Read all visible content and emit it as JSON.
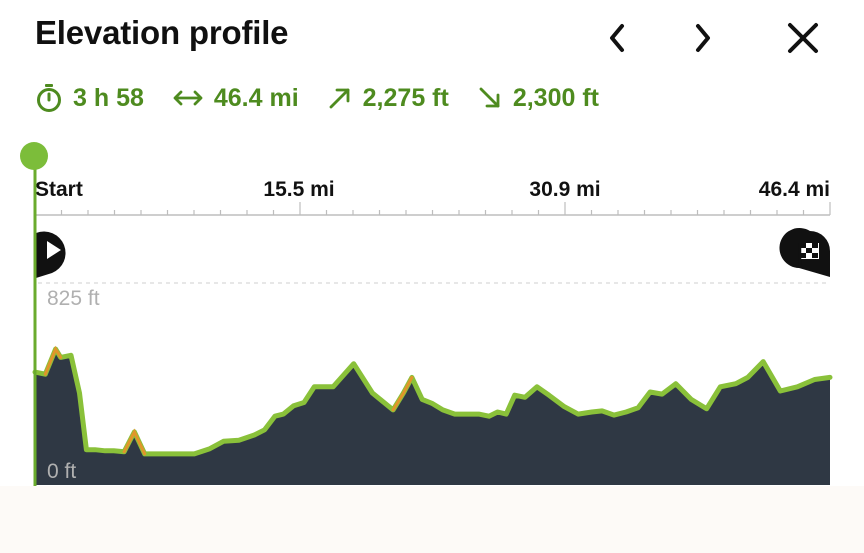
{
  "header": {
    "title": "Elevation profile"
  },
  "stats": {
    "duration": "3 h 58",
    "distance": "46.4 mi",
    "ascent": "2,275 ft",
    "descent": "2,300 ft"
  },
  "colors": {
    "accent": "#4e8b1f",
    "line": "#8ac13a",
    "fill": "#2f3844",
    "steep": "#e0962a"
  },
  "chart_data": {
    "type": "area",
    "xlim": [
      0,
      46.4
    ],
    "x_unit": "mi",
    "ylim": [
      0,
      825
    ],
    "y_unit": "ft",
    "x_tick_labels": [
      "Start",
      "15.5 mi",
      "30.9 mi",
      "46.4 mi"
    ],
    "y_tick_labels": [
      "825 ft",
      "0 ft"
    ],
    "markers": {
      "start": "play-icon",
      "end": "finish-flag-icon"
    },
    "series": [
      {
        "x": [
          0,
          0.6,
          1.2,
          1.5,
          2.1,
          2.6,
          3.0,
          3.5,
          4.1,
          4.6,
          5.2,
          5.8,
          6.4,
          7.0,
          7.5,
          8.1,
          8.4,
          8.7,
          9.3,
          10.2,
          11.0,
          11.9,
          12.8,
          13.4,
          14.0,
          14.5,
          15.1,
          15.7,
          16.3,
          17.4,
          18.6,
          19.7,
          20.9,
          21.5,
          22.0,
          22.6,
          23.2,
          23.8,
          24.5,
          25.2,
          25.9,
          26.5,
          27.0,
          27.5,
          28.0,
          28.6,
          29.3,
          30.0,
          30.9,
          31.7,
          32.5,
          33.1,
          33.8,
          34.5,
          35.2,
          35.9,
          36.6,
          37.4,
          38.3,
          39.2,
          40.0,
          40.9,
          41.6,
          42.5,
          43.5,
          44.5,
          45.5,
          46.4
        ],
        "y": [
          400,
          390,
          510,
          470,
          480,
          300,
          30,
          30,
          25,
          25,
          20,
          115,
          10,
          10,
          10,
          10,
          10,
          10,
          10,
          35,
          70,
          75,
          100,
          125,
          190,
          200,
          240,
          255,
          330,
          330,
          440,
          300,
          220,
          300,
          375,
          270,
          250,
          220,
          200,
          200,
          200,
          190,
          210,
          200,
          290,
          280,
          330,
          290,
          235,
          200,
          210,
          215,
          195,
          210,
          230,
          305,
          295,
          345,
          270,
          225,
          330,
          345,
          375,
          450,
          310,
          330,
          365,
          375
        ]
      }
    ]
  }
}
